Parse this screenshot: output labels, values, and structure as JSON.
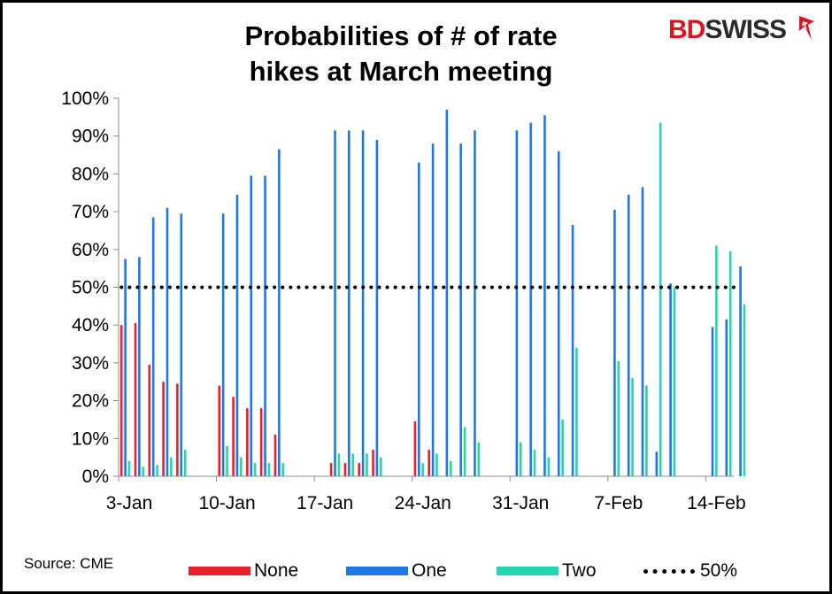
{
  "title_line1": "Probabilities of # of rate",
  "title_line2": "hikes at March meeting",
  "brand": {
    "part1": "BD",
    "part2": "SWISS"
  },
  "source": "Source: CME",
  "chart_data": {
    "type": "bar",
    "title": "Probabilities of # of rate hikes at March meeting",
    "ylim": [
      0,
      100
    ],
    "yticks": [
      "0%",
      "10%",
      "20%",
      "30%",
      "40%",
      "50%",
      "60%",
      "70%",
      "80%",
      "90%",
      "100%"
    ],
    "xticks": [
      "3-Jan",
      "10-Jan",
      "17-Jan",
      "24-Jan",
      "31-Jan",
      "7-Feb",
      "14-Feb"
    ],
    "categories": [
      "3-Jan",
      "4-Jan",
      "5-Jan",
      "6-Jan",
      "7-Jan",
      "10-Jan",
      "11-Jan",
      "12-Jan",
      "13-Jan",
      "14-Jan",
      "18-Jan",
      "19-Jan",
      "20-Jan",
      "21-Jan",
      "24-Jan",
      "25-Jan",
      "26-Jan",
      "27-Jan",
      "28-Jan",
      "31-Jan",
      "1-Feb",
      "2-Feb",
      "3-Feb",
      "4-Feb",
      "7-Feb",
      "8-Feb",
      "9-Feb",
      "10-Feb",
      "11-Feb",
      "14-Feb",
      "15-Feb",
      "16-Feb"
    ],
    "x_offsets": [
      0,
      1,
      2,
      3,
      4,
      7,
      8,
      9,
      10,
      11,
      15,
      16,
      17,
      18,
      21,
      22,
      23,
      24,
      25,
      28,
      29,
      30,
      31,
      32,
      35,
      36,
      37,
      38,
      39,
      42,
      43,
      44
    ],
    "series": [
      {
        "name": "None",
        "color": "#e8202a",
        "values": [
          40,
          40.5,
          29.5,
          25,
          24.5,
          24,
          21,
          18,
          18,
          11,
          3.5,
          3.5,
          3.5,
          7,
          14.5,
          7,
          0,
          0,
          0,
          0,
          0,
          0,
          0,
          0,
          0,
          0,
          0,
          0,
          0,
          0,
          0,
          0
        ]
      },
      {
        "name": "One",
        "color": "#1e78e6",
        "values": [
          57.5,
          58,
          68.5,
          71,
          69.5,
          69.5,
          74.5,
          79.5,
          79.5,
          86.5,
          91.5,
          91.5,
          91.5,
          89,
          83,
          88,
          97,
          88,
          91.5,
          91.5,
          93.5,
          95.5,
          86,
          66.5,
          70.5,
          74.5,
          76.5,
          6.5,
          51,
          39.5,
          41.5,
          55.5
        ]
      },
      {
        "name": "Two",
        "color": "#22d7b0",
        "values": [
          4,
          2.5,
          3,
          5,
          7,
          8,
          5,
          3.5,
          3.5,
          3.5,
          6,
          6,
          6,
          5,
          3.5,
          6,
          4,
          13,
          9,
          9,
          7,
          5,
          15,
          34,
          30.5,
          26,
          24,
          93.5,
          50,
          61,
          59.5,
          45.5
        ]
      }
    ],
    "reference_line": {
      "name": "50%",
      "value": 50,
      "style": "dotted"
    },
    "legend": [
      "None",
      "One",
      "Two",
      "50%"
    ],
    "legend_position": "bottom"
  }
}
